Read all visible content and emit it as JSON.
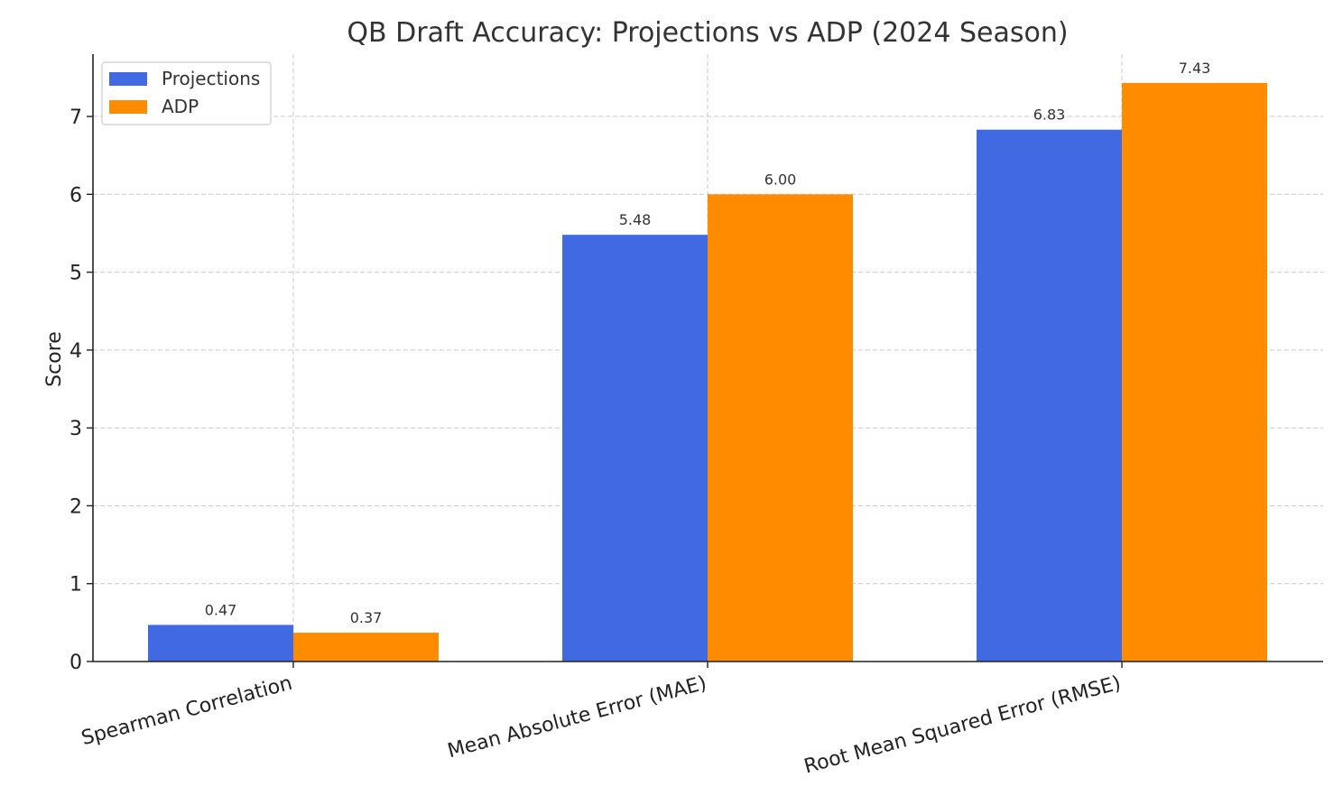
{
  "chart_data": {
    "type": "bar",
    "title": "QB Draft Accuracy: Projections vs ADP (2024 Season)",
    "xlabel": "",
    "ylabel": "Score",
    "categories": [
      "Spearman Correlation",
      "Mean Absolute Error (MAE)",
      "Root Mean Squared Error (RMSE)"
    ],
    "series": [
      {
        "name": "Projections",
        "values": [
          0.47,
          5.48,
          6.83
        ],
        "labels": [
          "0.47",
          "5.48",
          "6.83"
        ],
        "color": "#4169e1"
      },
      {
        "name": "ADP",
        "values": [
          0.37,
          6.0,
          7.43
        ],
        "labels": [
          "0.37",
          "6.00",
          "7.43"
        ],
        "color": "#ff8c00"
      }
    ],
    "yticks": [
      0,
      1,
      2,
      3,
      4,
      5,
      6,
      7
    ],
    "ylim": [
      0,
      7.8
    ],
    "grid": true,
    "legend_position": "top-left",
    "xtick_rotation": "tilted"
  }
}
